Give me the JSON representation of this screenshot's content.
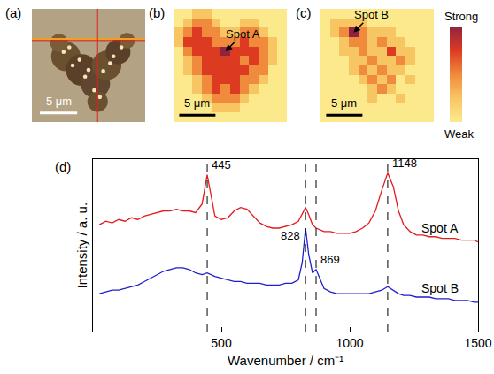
{
  "chart_data": [
    {
      "panel": "(a)",
      "type": "image",
      "scale_bar": "5 μm"
    },
    {
      "panel": "(b)",
      "type": "heatmap",
      "scale_bar": "5 μm",
      "tick_labels": false,
      "zlim": [
        0,
        4
      ],
      "marked_spot": {
        "text": "Spot A",
        "cell": [
          5,
          4
        ]
      },
      "cells": [
        [
          0,
          0,
          1,
          1,
          0,
          0,
          0,
          0,
          0,
          0,
          0,
          0
        ],
        [
          0,
          1,
          2,
          2,
          1,
          0,
          0,
          1,
          1,
          0,
          0,
          0
        ],
        [
          1,
          2,
          3,
          2,
          2,
          1,
          1,
          2,
          2,
          1,
          0,
          0
        ],
        [
          1,
          3,
          3,
          3,
          2,
          2,
          2,
          3,
          2,
          2,
          1,
          0
        ],
        [
          0,
          2,
          3,
          3,
          3,
          4,
          3,
          3,
          3,
          2,
          1,
          0
        ],
        [
          0,
          1,
          2,
          3,
          3,
          3,
          3,
          2,
          3,
          2,
          1,
          0
        ],
        [
          0,
          1,
          2,
          3,
          3,
          3,
          3,
          3,
          2,
          2,
          0,
          0
        ],
        [
          0,
          0,
          1,
          2,
          3,
          3,
          3,
          2,
          2,
          1,
          0,
          0
        ],
        [
          0,
          0,
          1,
          2,
          3,
          2,
          3,
          2,
          1,
          0,
          0,
          0
        ],
        [
          0,
          0,
          0,
          1,
          2,
          2,
          2,
          1,
          0,
          0,
          0,
          0
        ],
        [
          0,
          0,
          0,
          0,
          1,
          1,
          1,
          0,
          0,
          0,
          0,
          0
        ],
        [
          0,
          0,
          0,
          0,
          0,
          0,
          0,
          0,
          0,
          0,
          0,
          0
        ]
      ]
    },
    {
      "panel": "(c)",
      "type": "heatmap",
      "scale_bar": "5 μm",
      "tick_labels": false,
      "zlim": [
        0,
        4
      ],
      "marked_spot": {
        "text": "Spot B",
        "cell": [
          3,
          2
        ]
      },
      "colorbar_labels": {
        "low": "Weak",
        "high": "Strong"
      },
      "cells": [
        [
          0,
          0,
          0,
          0,
          0,
          0,
          0,
          0,
          0,
          0,
          0,
          0
        ],
        [
          0,
          1,
          1,
          1,
          1,
          0,
          0,
          0,
          0,
          0,
          0,
          0
        ],
        [
          0,
          1,
          2,
          4,
          2,
          1,
          1,
          1,
          0,
          0,
          0,
          0
        ],
        [
          0,
          0,
          1,
          2,
          2,
          1,
          2,
          1,
          1,
          0,
          0,
          0
        ],
        [
          0,
          0,
          1,
          1,
          2,
          1,
          1,
          3,
          1,
          1,
          0,
          0
        ],
        [
          0,
          0,
          0,
          1,
          1,
          2,
          1,
          1,
          2,
          1,
          0,
          0
        ],
        [
          0,
          0,
          0,
          1,
          2,
          1,
          2,
          1,
          1,
          0,
          0,
          0
        ],
        [
          0,
          0,
          0,
          0,
          1,
          2,
          1,
          2,
          0,
          1,
          0,
          0
        ],
        [
          0,
          0,
          0,
          0,
          0,
          1,
          2,
          1,
          0,
          0,
          0,
          0
        ],
        [
          0,
          0,
          0,
          0,
          0,
          1,
          0,
          0,
          1,
          0,
          0,
          0
        ],
        [
          0,
          0,
          0,
          0,
          0,
          0,
          0,
          0,
          0,
          0,
          0,
          0
        ],
        [
          0,
          0,
          0,
          0,
          0,
          0,
          0,
          0,
          0,
          0,
          0,
          0
        ]
      ]
    },
    {
      "panel": "(d)",
      "type": "line",
      "x_label": "Wavenumber / cm⁻¹",
      "y_label": "Intensity / a. u.",
      "xlim": [
        0,
        1500
      ],
      "xticks": [
        500,
        1000,
        1500
      ],
      "ylim": [
        0,
        100
      ],
      "tick_labels": "x",
      "grid": false,
      "vlines": [
        445,
        828,
        869,
        1148
      ],
      "x": [
        25,
        50,
        75,
        100,
        125,
        150,
        175,
        200,
        225,
        250,
        275,
        300,
        325,
        350,
        375,
        400,
        425,
        445,
        460,
        475,
        500,
        525,
        550,
        575,
        600,
        625,
        650,
        675,
        700,
        725,
        750,
        775,
        800,
        815,
        828,
        840,
        855,
        869,
        900,
        925,
        950,
        975,
        1000,
        1025,
        1050,
        1075,
        1100,
        1125,
        1148,
        1170,
        1190,
        1210,
        1235,
        1260,
        1285,
        1310,
        1335,
        1360,
        1385,
        1410,
        1435,
        1460,
        1485,
        1500
      ],
      "series": [
        {
          "name": "Spot A",
          "color": "#e41a1c",
          "peaks": [
            445,
            1148
          ],
          "values": [
            62,
            64,
            63,
            65,
            64,
            66,
            65,
            67,
            68,
            69,
            70,
            70,
            71,
            70,
            70,
            69,
            74,
            91,
            78,
            67,
            65,
            66,
            70,
            72,
            71,
            67,
            63,
            61,
            60,
            60,
            61,
            62,
            64,
            68,
            72,
            68,
            62,
            60,
            58,
            58,
            57,
            57,
            57,
            58,
            60,
            63,
            70,
            82,
            92,
            84,
            70,
            62,
            58,
            56,
            56,
            55,
            55,
            54,
            54,
            54,
            53,
            53,
            53,
            52
          ]
        },
        {
          "name": "Spot B",
          "color": "#1f1fd0",
          "peaks": [
            828,
            869
          ],
          "values": [
            22,
            23,
            24,
            24,
            25,
            26,
            27,
            29,
            31,
            33,
            35,
            36,
            37,
            37,
            36,
            34,
            33,
            34,
            33,
            32,
            31,
            30,
            29,
            29,
            28,
            28,
            28,
            27,
            27,
            27,
            28,
            28,
            30,
            40,
            60,
            45,
            34,
            36,
            25,
            23,
            22,
            22,
            22,
            22,
            22,
            22,
            23,
            24,
            26,
            24,
            22,
            21,
            21,
            20,
            20,
            20,
            19,
            19,
            19,
            18,
            18,
            18,
            17,
            17
          ]
        }
      ]
    }
  ]
}
